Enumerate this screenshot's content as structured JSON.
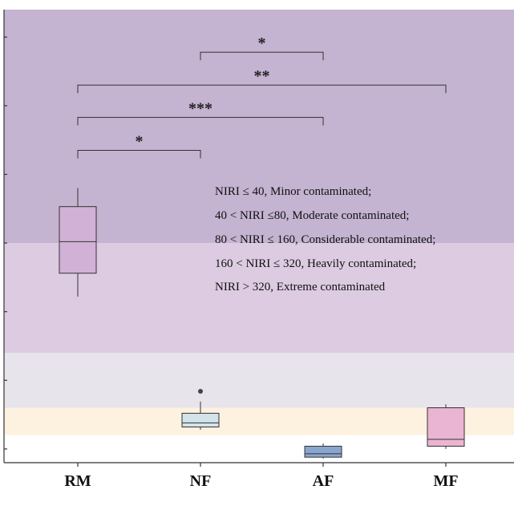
{
  "chart_data": {
    "type": "box",
    "categories": [
      "RM",
      "NF",
      "AF",
      "MF"
    ],
    "ylim": [
      0,
      660
    ],
    "boxes": [
      {
        "category": "RM",
        "whisker_low": 242,
        "q1": 276,
        "median": 322,
        "q3": 373,
        "whisker_high": 400,
        "color": "#d1b2d6",
        "outliers": []
      },
      {
        "category": "NF",
        "whisker_low": 48,
        "q1": 52,
        "median": 58,
        "q3": 72,
        "whisker_high": 89,
        "color": "#d3e3ea",
        "outliers": [
          104
        ]
      },
      {
        "category": "AF",
        "whisker_low": 6,
        "q1": 8,
        "median": 13,
        "q3": 24,
        "whisker_high": 28,
        "color": "#8aa6cf",
        "outliers": []
      },
      {
        "category": "MF",
        "whisker_low": 20,
        "q1": 24,
        "median": 34,
        "q3": 80,
        "whisker_high": 85,
        "color": "#eab5d2",
        "outliers": []
      }
    ],
    "bands": [
      {
        "from": 0,
        "to": 40,
        "color": "#ffffff"
      },
      {
        "from": 40,
        "to": 80,
        "color": "#fdf1e0"
      },
      {
        "from": 80,
        "to": 160,
        "color": "#e8e4ec"
      },
      {
        "from": 160,
        "to": 320,
        "color": "#dccbe1"
      },
      {
        "from": 320,
        "to": 660,
        "color": "#c4b3d1"
      }
    ],
    "yticks": [
      20,
      120,
      220,
      320,
      420,
      520,
      620
    ],
    "significance": [
      {
        "from": "NF",
        "to": "AF",
        "label": "*",
        "level": 598
      },
      {
        "from": "RM",
        "to": "MF",
        "label": "**",
        "level": 550
      },
      {
        "from": "RM",
        "to": "AF",
        "label": "***",
        "level": 503
      },
      {
        "from": "RM",
        "to": "NF",
        "label": "*",
        "level": 455
      }
    ],
    "annotations": [
      "NIRI ≤ 40, Minor contaminated;",
      "40 < NIRI ≤80, Moderate contaminated;",
      "80 < NIRI ≤ 160, Considerable contaminated;",
      "160 < NIRI ≤ 320, Heavily contaminated;",
      "NIRI > 320, Extreme contaminated"
    ]
  }
}
